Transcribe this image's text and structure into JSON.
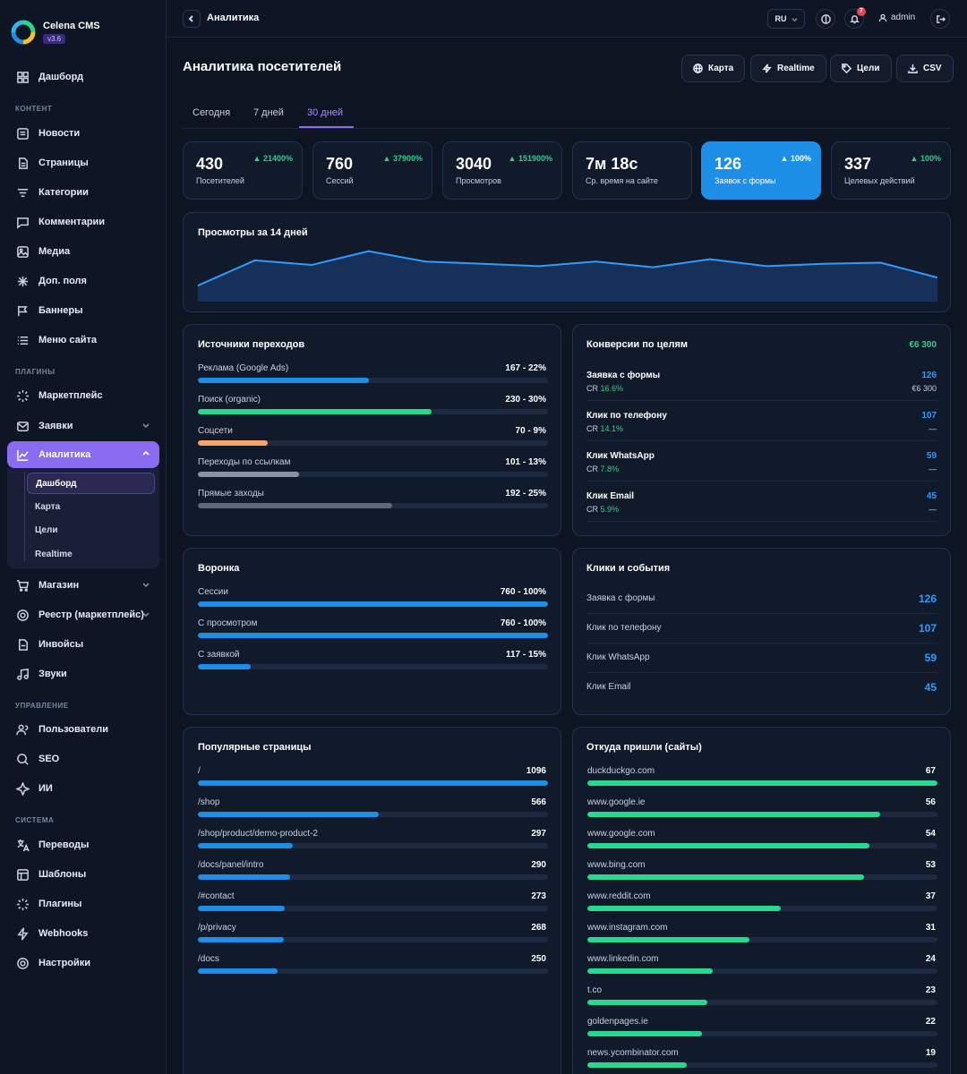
{
  "brand": {
    "name": "Celena CMS",
    "version": "v3.6"
  },
  "sidebar": {
    "dashboard": "Дашборд",
    "sections": {
      "content": "КОНТЕНТ",
      "plugins": "ПЛАГИНЫ",
      "management": "УПРАВЛЕНИЕ",
      "system": "СИСТЕМА"
    },
    "content_items": [
      "Новости",
      "Страницы",
      "Категории",
      "Комментарии",
      "Медиа",
      "Доп. поля",
      "Баннеры",
      "Меню сайта"
    ],
    "plugin_items": [
      "Маркетплейс",
      "Заявки",
      "Аналитика"
    ],
    "analytics_sub": [
      "Дашборд",
      "Карта",
      "Цели",
      "Realtime"
    ],
    "plugin_items_2": [
      "Магазин",
      "Реестр (маркетплейс)",
      "Инвойсы",
      "Звуки"
    ],
    "management_items": [
      "Пользователи",
      "SEO",
      "ИИ"
    ],
    "system_items": [
      "Переводы",
      "Шаблоны",
      "Плагины",
      "Webhooks",
      "Настройки"
    ]
  },
  "topbar": {
    "title": "Аналитика",
    "lang": "RU",
    "notif_count": "7",
    "user": "admin"
  },
  "page": {
    "title": "Аналитика посетителей",
    "buttons": [
      "Карта",
      "Realtime",
      "Цели",
      "CSV"
    ],
    "tabs": [
      "Сегодня",
      "7 дней",
      "30 дней"
    ],
    "active_tab": "30 дней"
  },
  "stats": [
    {
      "value": "430",
      "label": "Посетителей",
      "change": "21400%"
    },
    {
      "value": "760",
      "label": "Сессий",
      "change": "37900%"
    },
    {
      "value": "3040",
      "label": "Просмотров",
      "change": "151900%"
    },
    {
      "value": "7м 18с",
      "label": "Ср. время на сайте",
      "change": ""
    },
    {
      "value": "126",
      "label": "Заявок с формы",
      "change": "100%"
    },
    {
      "value": "337",
      "label": "Целевых действий",
      "change": "100%"
    }
  ],
  "views_chart": {
    "title": "Просмотры за 14 дней",
    "chart_data": {
      "type": "area",
      "values": [
        214,
        236,
        232,
        244,
        235,
        233,
        231,
        235,
        230,
        237,
        231,
        233,
        234,
        221
      ]
    }
  },
  "sources": {
    "title": "Источники переходов",
    "rows": [
      {
        "label": "Реклама (Google Ads)",
        "value": "167 - 22%",
        "pct": 22,
        "color": "#1d8fe6"
      },
      {
        "label": "Поиск (organic)",
        "value": "230 - 30%",
        "pct": 30,
        "color": "#25d98f"
      },
      {
        "label": "Соцсети",
        "value": "70 - 9%",
        "pct": 9,
        "color": "#f5a26b"
      },
      {
        "label": "Переходы по ссылкам",
        "value": "101 - 13%",
        "pct": 13,
        "color": "#8a93a6"
      },
      {
        "label": "Прямые заходы",
        "value": "192 - 25%",
        "pct": 25,
        "color": "#5f6778"
      }
    ]
  },
  "conversions": {
    "title": "Конверсии по целям",
    "total": "€6 300",
    "cr_label": "CR",
    "rows": [
      {
        "name": "Заявка с формы",
        "cr": "16.6%",
        "count": "126",
        "sub": "€6 300"
      },
      {
        "name": "Клик по телефону",
        "cr": "14.1%",
        "count": "107",
        "sub": "—"
      },
      {
        "name": "Клик WhatsApp",
        "cr": "7.8%",
        "count": "59",
        "sub": "—"
      },
      {
        "name": "Клик Email",
        "cr": "5.9%",
        "count": "45",
        "sub": "—"
      }
    ]
  },
  "funnel": {
    "title": "Воронка",
    "rows": [
      {
        "label": "Сессии",
        "value": "760 - 100%",
        "pct": 100
      },
      {
        "label": "С просмотром",
        "value": "760 - 100%",
        "pct": 100
      },
      {
        "label": "С заявкой",
        "value": "117 - 15%",
        "pct": 15
      }
    ]
  },
  "clicks": {
    "title": "Клики и события",
    "rows": [
      {
        "label": "Заявка с формы",
        "value": "126"
      },
      {
        "label": "Клик по телефону",
        "value": "107"
      },
      {
        "label": "Клик WhatsApp",
        "value": "59"
      },
      {
        "label": "Клик Email",
        "value": "45"
      }
    ]
  },
  "popular": {
    "title": "Популярные страницы",
    "max": 1096,
    "rows": [
      {
        "label": "/",
        "value": 1096
      },
      {
        "label": "/shop",
        "value": 566
      },
      {
        "label": "/shop/product/demo-product-2",
        "value": 297
      },
      {
        "label": "/docs/panel/intro",
        "value": 290
      },
      {
        "label": "/#contact",
        "value": 273
      },
      {
        "label": "/p/privacy",
        "value": 268
      },
      {
        "label": "/docs",
        "value": 250
      }
    ]
  },
  "referrers": {
    "title": "Откуда пришли (сайты)",
    "max": 67,
    "rows": [
      {
        "label": "duckduckgo.com",
        "value": 67
      },
      {
        "label": "www.google.ie",
        "value": 56
      },
      {
        "label": "www.google.com",
        "value": 54
      },
      {
        "label": "www.bing.com",
        "value": 53
      },
      {
        "label": "www.reddit.com",
        "value": 37
      },
      {
        "label": "www.instagram.com",
        "value": 31
      },
      {
        "label": "www.linkedin.com",
        "value": 24
      },
      {
        "label": "t.co",
        "value": 23
      },
      {
        "label": "goldenpages.ie",
        "value": 22
      },
      {
        "label": "news.ycombinator.com",
        "value": 19
      }
    ]
  }
}
